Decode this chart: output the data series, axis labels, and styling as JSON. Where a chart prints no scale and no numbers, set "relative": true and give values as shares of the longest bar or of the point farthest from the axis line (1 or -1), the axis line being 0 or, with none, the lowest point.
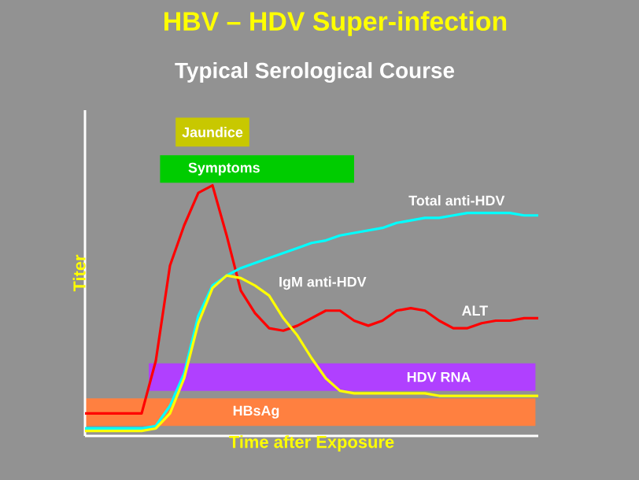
{
  "chart_data": {
    "type": "line",
    "relative": true,
    "title": "HBV – HDV Super-infection",
    "subtitle": "Typical Serological Course",
    "xlabel": "Time after Exposure",
    "ylabel": "Titer",
    "legend": false,
    "categories": [
      null,
      null,
      null,
      null,
      null,
      null,
      null,
      null,
      null,
      null,
      null,
      null,
      null,
      null,
      null,
      null,
      null,
      null,
      null,
      null,
      null,
      null,
      null,
      null,
      null,
      null,
      null,
      null,
      null,
      null,
      null,
      null,
      null
    ],
    "series": [
      {
        "name": "ALT",
        "color": "#ff0000",
        "values": [
          0.09,
          0.09,
          0.09,
          0.09,
          0.09,
          0.3,
          0.68,
          0.84,
          0.97,
          1.0,
          0.8,
          0.58,
          0.49,
          0.43,
          0.42,
          0.44,
          0.47,
          0.5,
          0.5,
          0.46,
          0.44,
          0.46,
          0.5,
          0.51,
          0.5,
          0.46,
          0.43,
          0.43,
          0.45,
          0.46,
          0.46,
          0.47,
          0.47
        ]
      },
      {
        "name": "Total anti-HDV",
        "color": "#00ffff",
        "values": [
          0.03,
          0.03,
          0.03,
          0.03,
          0.03,
          0.04,
          0.12,
          0.25,
          0.48,
          0.6,
          0.64,
          0.67,
          0.69,
          0.71,
          0.73,
          0.75,
          0.77,
          0.78,
          0.8,
          0.81,
          0.82,
          0.83,
          0.85,
          0.86,
          0.87,
          0.87,
          0.88,
          0.89,
          0.89,
          0.89,
          0.89,
          0.88,
          0.88
        ]
      },
      {
        "name": "IgM anti-HDV",
        "color": "#ffff00",
        "values": [
          0.02,
          0.02,
          0.02,
          0.02,
          0.02,
          0.03,
          0.09,
          0.23,
          0.45,
          0.59,
          0.64,
          0.63,
          0.6,
          0.56,
          0.47,
          0.4,
          0.31,
          0.23,
          0.18,
          0.17,
          0.17,
          0.17,
          0.17,
          0.17,
          0.17,
          0.16,
          0.16,
          0.16,
          0.16,
          0.16,
          0.16,
          0.16,
          0.16
        ]
      }
    ],
    "annotations": [
      "Jaundice",
      "Symptoms",
      "HDV RNA",
      "HBsAg"
    ]
  }
}
